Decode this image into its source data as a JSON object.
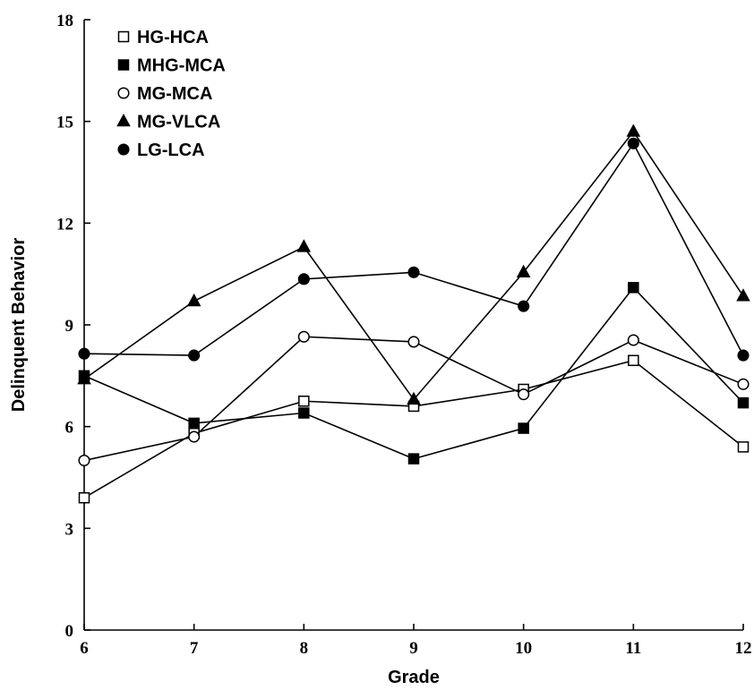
{
  "chart_data": {
    "type": "line",
    "xlabel": "Grade",
    "ylabel": "Delinquent Behavior",
    "x": [
      6,
      7,
      8,
      9,
      10,
      11,
      12
    ],
    "xlim": [
      6,
      12
    ],
    "ylim": [
      0,
      18
    ],
    "yticks": [
      0,
      3,
      6,
      9,
      12,
      15,
      18
    ],
    "xticks": [
      6,
      7,
      8,
      9,
      10,
      11,
      12
    ],
    "grid": false,
    "legend": "top-left",
    "series": [
      {
        "name": "HG-HCA",
        "marker": "square-open",
        "values": [
          3.9,
          5.8,
          6.75,
          6.6,
          7.1,
          7.95,
          5.4
        ]
      },
      {
        "name": "MHG-MCA",
        "marker": "square-filled",
        "values": [
          7.5,
          6.1,
          6.4,
          5.05,
          5.95,
          10.1,
          6.7
        ]
      },
      {
        "name": "MG-MCA",
        "marker": "circle-open",
        "values": [
          5.0,
          5.7,
          8.65,
          8.5,
          6.95,
          8.55,
          7.25
        ]
      },
      {
        "name": "MG-VLCA",
        "marker": "triangle-filled",
        "values": [
          7.4,
          9.7,
          11.3,
          6.8,
          10.55,
          14.7,
          9.85
        ]
      },
      {
        "name": "LG-LCA",
        "marker": "circle-filled",
        "values": [
          8.15,
          8.1,
          10.35,
          10.55,
          9.55,
          14.35,
          8.1
        ]
      }
    ]
  }
}
